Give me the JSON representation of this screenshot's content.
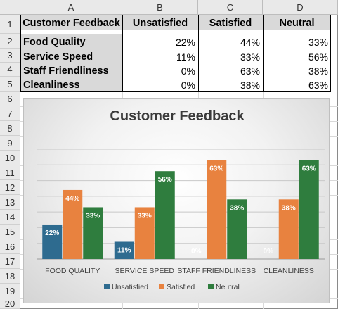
{
  "columns": [
    "A",
    "B",
    "C",
    "D"
  ],
  "rows": [
    "1",
    "2",
    "3",
    "4",
    "5",
    "6",
    "7",
    "8",
    "9",
    "10",
    "11",
    "12",
    "13",
    "14",
    "15",
    "16",
    "17",
    "18",
    "19",
    "20"
  ],
  "table": {
    "headers": [
      "Customer Feedback",
      "Unsatisfied",
      "Satisfied",
      "Neutral"
    ],
    "rows": [
      {
        "label": "Food Quality",
        "values": [
          "22%",
          "44%",
          "33%"
        ]
      },
      {
        "label": "Service Speed",
        "values": [
          "11%",
          "33%",
          "56%"
        ]
      },
      {
        "label": "Staff Friendliness",
        "values": [
          "0%",
          "63%",
          "38%"
        ]
      },
      {
        "label": "Cleanliness",
        "values": [
          "0%",
          "38%",
          "63%"
        ]
      }
    ]
  },
  "chart_data": {
    "type": "bar",
    "title": "Customer Feedback",
    "categories": [
      "FOOD QUALITY",
      "SERVICE SPEED",
      "STAFF FRIENDLINESS",
      "CLEANLINESS"
    ],
    "series": [
      {
        "name": "Unsatisfied",
        "values": [
          22,
          11,
          0,
          0
        ],
        "labels": [
          "22%",
          "11%",
          "0%",
          "0%"
        ],
        "color": "#2e6b8f"
      },
      {
        "name": "Satisfied",
        "values": [
          44,
          33,
          63,
          38
        ],
        "labels": [
          "44%",
          "33%",
          "63%",
          "38%"
        ],
        "color": "#e8823f"
      },
      {
        "name": "Neutral",
        "values": [
          33,
          56,
          38,
          63
        ],
        "labels": [
          "33%",
          "56%",
          "38%",
          "63%"
        ],
        "color": "#2f7d3e"
      }
    ],
    "ylim": [
      0,
      70
    ],
    "grid": true,
    "legend": "bottom"
  }
}
